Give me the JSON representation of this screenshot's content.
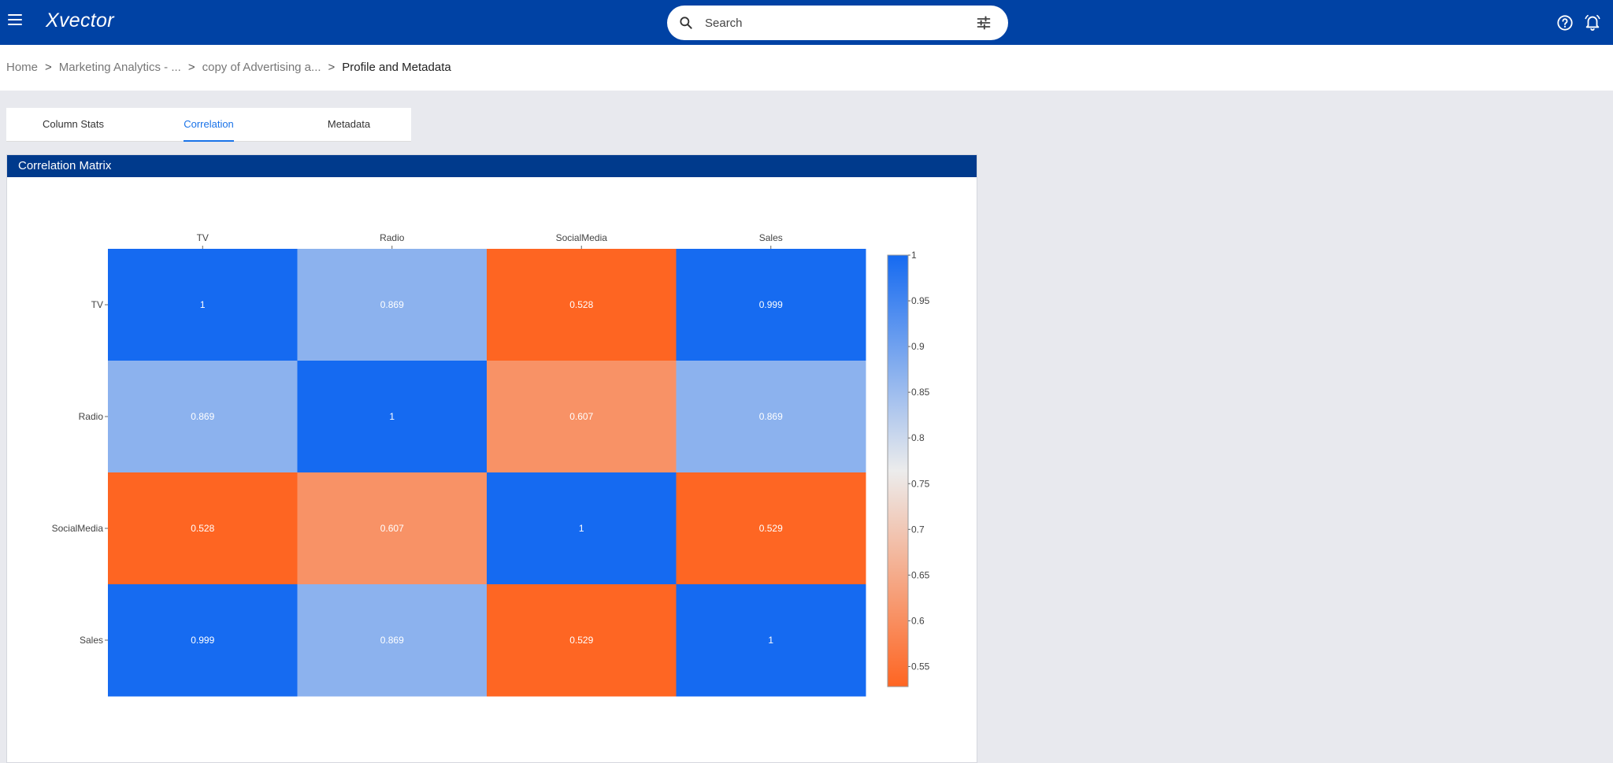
{
  "app": {
    "name": "Xvector"
  },
  "search": {
    "placeholder": "Search"
  },
  "breadcrumb": [
    "Home",
    "Marketing Analytics - ...",
    "copy of Advertising a...",
    "Profile and Metadata"
  ],
  "breadcrumb_separator": ">",
  "tabs": [
    {
      "label": "Column Stats",
      "active": false
    },
    {
      "label": "Correlation",
      "active": true
    },
    {
      "label": "Metadata",
      "active": false
    }
  ],
  "panel": {
    "title": "Correlation Matrix"
  },
  "colors": {
    "appbar": "#0042a4",
    "panel_header": "#003a8c",
    "accent": "#1a73e8",
    "high": "#156af1",
    "low": "#fe6522"
  },
  "chart_data": {
    "type": "heatmap",
    "x": [
      "TV",
      "Radio",
      "SocialMedia",
      "Sales"
    ],
    "y": [
      "TV",
      "Radio",
      "SocialMedia",
      "Sales"
    ],
    "z": [
      [
        1,
        0.869,
        0.528,
        0.999
      ],
      [
        0.869,
        1,
        0.607,
        0.869
      ],
      [
        0.528,
        0.607,
        1,
        0.529
      ],
      [
        0.999,
        0.869,
        0.529,
        1
      ]
    ],
    "colorscale": {
      "min": 0.528,
      "max": 1,
      "low_color": "#fe6522",
      "mid_color": "#ececec",
      "high_color": "#156af1"
    },
    "colorbar_ticks": [
      1,
      0.95,
      0.9,
      0.85,
      0.8,
      0.75,
      0.7,
      0.65,
      0.6,
      0.55
    ],
    "colorbar_position": "right"
  }
}
